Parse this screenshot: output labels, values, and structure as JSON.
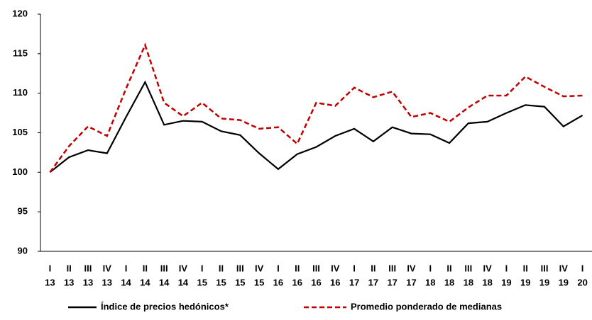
{
  "chart_data": {
    "type": "line",
    "categories": [
      [
        "I",
        "13"
      ],
      [
        "II",
        "13"
      ],
      [
        "III",
        "13"
      ],
      [
        "IV",
        "13"
      ],
      [
        "I",
        "14"
      ],
      [
        "II",
        "14"
      ],
      [
        "III",
        "14"
      ],
      [
        "IV",
        "14"
      ],
      [
        "I",
        "15"
      ],
      [
        "II",
        "15"
      ],
      [
        "III",
        "15"
      ],
      [
        "IV",
        "15"
      ],
      [
        "I",
        "16"
      ],
      [
        "II",
        "16"
      ],
      [
        "III",
        "16"
      ],
      [
        "IV",
        "16"
      ],
      [
        "I",
        "17"
      ],
      [
        "II",
        "17"
      ],
      [
        "III",
        "17"
      ],
      [
        "IV",
        "17"
      ],
      [
        "I",
        "18"
      ],
      [
        "II",
        "18"
      ],
      [
        "III",
        "18"
      ],
      [
        "IV",
        "18"
      ],
      [
        "I",
        "19"
      ],
      [
        "II",
        "19"
      ],
      [
        "III",
        "19"
      ],
      [
        "IV",
        "19"
      ],
      [
        "I",
        "20"
      ]
    ],
    "series": [
      {
        "name": "Índice de precios hedónicos*",
        "color": "#000000",
        "dash": false,
        "values": [
          100,
          101.9,
          102.8,
          102.4,
          107,
          111.4,
          106,
          106.5,
          106.4,
          105.2,
          104.7,
          102.4,
          100.4,
          102.3,
          103.2,
          104.6,
          105.5,
          103.9,
          105.7,
          104.9,
          104.8,
          103.7,
          106.2,
          106.4,
          107.5,
          108.5,
          108.3,
          105.8,
          107.2
        ]
      },
      {
        "name": "Promedio ponderado de medianas",
        "color": "#c00000",
        "dash": true,
        "values": [
          100,
          103.3,
          105.8,
          104.6,
          110.6,
          116.1,
          108.8,
          107.1,
          108.8,
          106.8,
          106.6,
          105.5,
          105.7,
          103.6,
          108.8,
          108.4,
          110.7,
          109.5,
          110.2,
          107,
          107.5,
          106.4,
          108.2,
          109.7,
          109.7,
          112.1,
          110.8,
          109.6,
          109.7
        ]
      }
    ],
    "ylim": [
      90,
      120
    ],
    "yticks": [
      90,
      95,
      100,
      105,
      110,
      115,
      120
    ],
    "grid": false
  }
}
